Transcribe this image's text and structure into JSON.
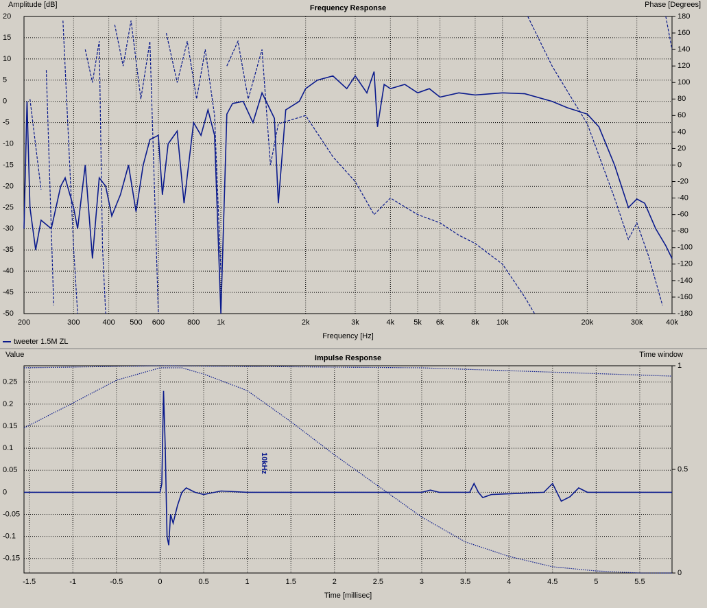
{
  "chart_data": [
    {
      "type": "line",
      "title": "Frequency Response",
      "ylabel": "Amplitude [dB]",
      "y2label": "Phase [Degrees]",
      "xlabel": "Frequency [Hz]",
      "legend": "tweeter 1.5M ZL",
      "xlog": true,
      "grid": true,
      "color": "#0a1a8c",
      "xlim": [
        200,
        40000
      ],
      "ylim": [
        -50,
        20
      ],
      "y2lim": [
        -180,
        180
      ],
      "xticks": [
        200,
        300,
        400,
        500,
        600,
        800,
        {
          "value": 1000,
          "label": "1k"
        },
        {
          "value": 2000,
          "label": "2k"
        },
        {
          "value": 3000,
          "label": "3k"
        },
        {
          "value": 4000,
          "label": "4k"
        },
        {
          "value": 5000,
          "label": "5k"
        },
        {
          "value": 6000,
          "label": "6k"
        },
        {
          "value": 8000,
          "label": "8k"
        },
        {
          "value": 10000,
          "label": "10k"
        },
        {
          "value": 20000,
          "label": "20k"
        },
        {
          "value": 30000,
          "label": "30k"
        },
        {
          "value": 40000,
          "label": "40k"
        }
      ],
      "yticks": [
        20,
        15,
        10,
        5,
        0,
        -5,
        -10,
        -15,
        -20,
        -25,
        -30,
        -35,
        -40,
        -45,
        -50
      ],
      "y2ticks": [
        180,
        160,
        140,
        120,
        100,
        80,
        60,
        40,
        20,
        0,
        -20,
        -40,
        -60,
        -80,
        -100,
        -120,
        -140,
        -160,
        -180
      ],
      "series": [
        {
          "style": "solid",
          "x": [
            200,
            205,
            210,
            220,
            230,
            250,
            270,
            280,
            300,
            310,
            330,
            350,
            370,
            390,
            410,
            440,
            470,
            500,
            530,
            560,
            600,
            620,
            650,
            700,
            740,
            800,
            850,
            900,
            950,
            1000,
            1050,
            1100,
            1200,
            1300,
            1400,
            1550,
            1600,
            1700,
            1900,
            2000,
            2200,
            2500,
            2800,
            3000,
            3300,
            3500,
            3600,
            3800,
            4000,
            4500,
            5000,
            5500,
            6000,
            7000,
            8000,
            10000,
            12000,
            15000,
            17000,
            20000,
            22000,
            25000,
            28000,
            30000,
            32000,
            35000,
            38000,
            40000
          ],
          "values": [
            -30,
            0,
            -25,
            -35,
            -28,
            -30,
            -20,
            -18,
            -25,
            -30,
            -15,
            -37,
            -18,
            -20,
            -27,
            -22,
            -15,
            -26,
            -15,
            -9,
            -8,
            -22,
            -10,
            -7,
            -24,
            -5,
            -8,
            -2,
            -8,
            -50,
            -3,
            -0.5,
            0,
            -5,
            2,
            -4,
            -24,
            -2,
            0,
            3,
            5,
            6,
            3,
            6,
            2,
            7,
            -6,
            4,
            3,
            4,
            2,
            3,
            1,
            2,
            1.5,
            2,
            1.8,
            0,
            -1.5,
            -3,
            -6,
            -15,
            -25,
            -23,
            -24,
            -30,
            -34,
            -37
          ]
        },
        {
          "style": "dashed",
          "axis": "y2",
          "x": [
            210,
            230,
            null,
            240,
            255,
            null,
            275,
            300,
            310,
            null,
            330,
            350,
            370,
            380,
            390,
            null,
            420,
            450,
            480,
            520,
            560,
            600,
            null,
            640,
            700,
            760,
            820,
            880,
            950,
            1000,
            null,
            1050,
            1150,
            1250,
            1400,
            1500,
            1600,
            2000,
            2500,
            3000,
            3500,
            4000,
            5000,
            6000,
            7000,
            8000,
            10000,
            12000,
            13000,
            null,
            12300,
            15000,
            20000,
            25000,
            28000,
            30000,
            33000,
            37000,
            null,
            38000,
            40000
          ],
          "values": [
            80,
            -30,
            null,
            115,
            -170,
            null,
            175,
            -100,
            -180,
            null,
            140,
            100,
            150,
            -100,
            -180,
            null,
            170,
            120,
            175,
            80,
            150,
            -180,
            null,
            160,
            100,
            150,
            80,
            140,
            60,
            -130,
            null,
            120,
            150,
            80,
            140,
            0,
            50,
            60,
            10,
            -20,
            -60,
            -40,
            -60,
            -70,
            -85,
            -95,
            -120,
            -160,
            -180,
            null,
            180,
            120,
            50,
            -40,
            -90,
            -70,
            -110,
            -170,
            null,
            180,
            140
          ]
        }
      ]
    },
    {
      "type": "line",
      "title": "Impulse Response",
      "ylabel": "Value",
      "y2label": "Time window",
      "xlabel": "Time [millisec]",
      "annotation": "10kHz",
      "grid": true,
      "color": "#0a1a8c",
      "xlim": [
        -1.56,
        5.87
      ],
      "ylim": [
        -0.183,
        0.287
      ],
      "y2lim": [
        0,
        1
      ],
      "xticks": [
        -1.5,
        -1,
        -0.5,
        0,
        0.5,
        1,
        1.5,
        2,
        2.5,
        3,
        3.5,
        4,
        4.5,
        5,
        5.5
      ],
      "yticks": [
        0.25,
        0.2,
        0.15,
        0.1,
        0.05,
        0,
        -0.05,
        -0.1,
        -0.15
      ],
      "y2ticks": [
        1,
        0.5,
        0
      ],
      "series": [
        {
          "style": "solid",
          "x": [
            -1.56,
            0,
            0.02,
            0.04,
            0.06,
            0.08,
            0.1,
            0.12,
            0.15,
            0.2,
            0.25,
            0.3,
            0.4,
            0.5,
            0.7,
            1,
            3,
            3.1,
            3.2,
            3.55,
            3.6,
            3.65,
            3.7,
            3.8,
            4.4,
            4.5,
            4.55,
            4.6,
            4.7,
            4.8,
            4.9,
            5.5,
            5.87
          ],
          "values": [
            0,
            0,
            0.02,
            0.23,
            0.1,
            -0.1,
            -0.12,
            -0.05,
            -0.07,
            -0.03,
            0,
            0.01,
            0,
            -0.005,
            0.003,
            0,
            0,
            0.005,
            0,
            0,
            0.02,
            0,
            -0.012,
            -0.005,
            0,
            0.02,
            0,
            -0.02,
            -0.01,
            0.01,
            0,
            0,
            0
          ]
        },
        {
          "style": "dotted",
          "axis": "y2",
          "x": [
            -1.56,
            -1,
            -0.5,
            0,
            0.25,
            0.5,
            1,
            1.5,
            2,
            2.5,
            3,
            3.5,
            4,
            4.5,
            5,
            5.5,
            5.87
          ],
          "values": [
            0.7,
            0.82,
            0.93,
            0.99,
            0.99,
            0.96,
            0.88,
            0.73,
            0.57,
            0.42,
            0.27,
            0.15,
            0.08,
            0.03,
            0.01,
            0,
            0
          ]
        },
        {
          "style": "dotted",
          "axis": "y2",
          "x": [
            -1.56,
            0,
            3,
            5.87
          ],
          "values": [
            0.99,
            1,
            0.99,
            0.95
          ]
        }
      ]
    }
  ]
}
